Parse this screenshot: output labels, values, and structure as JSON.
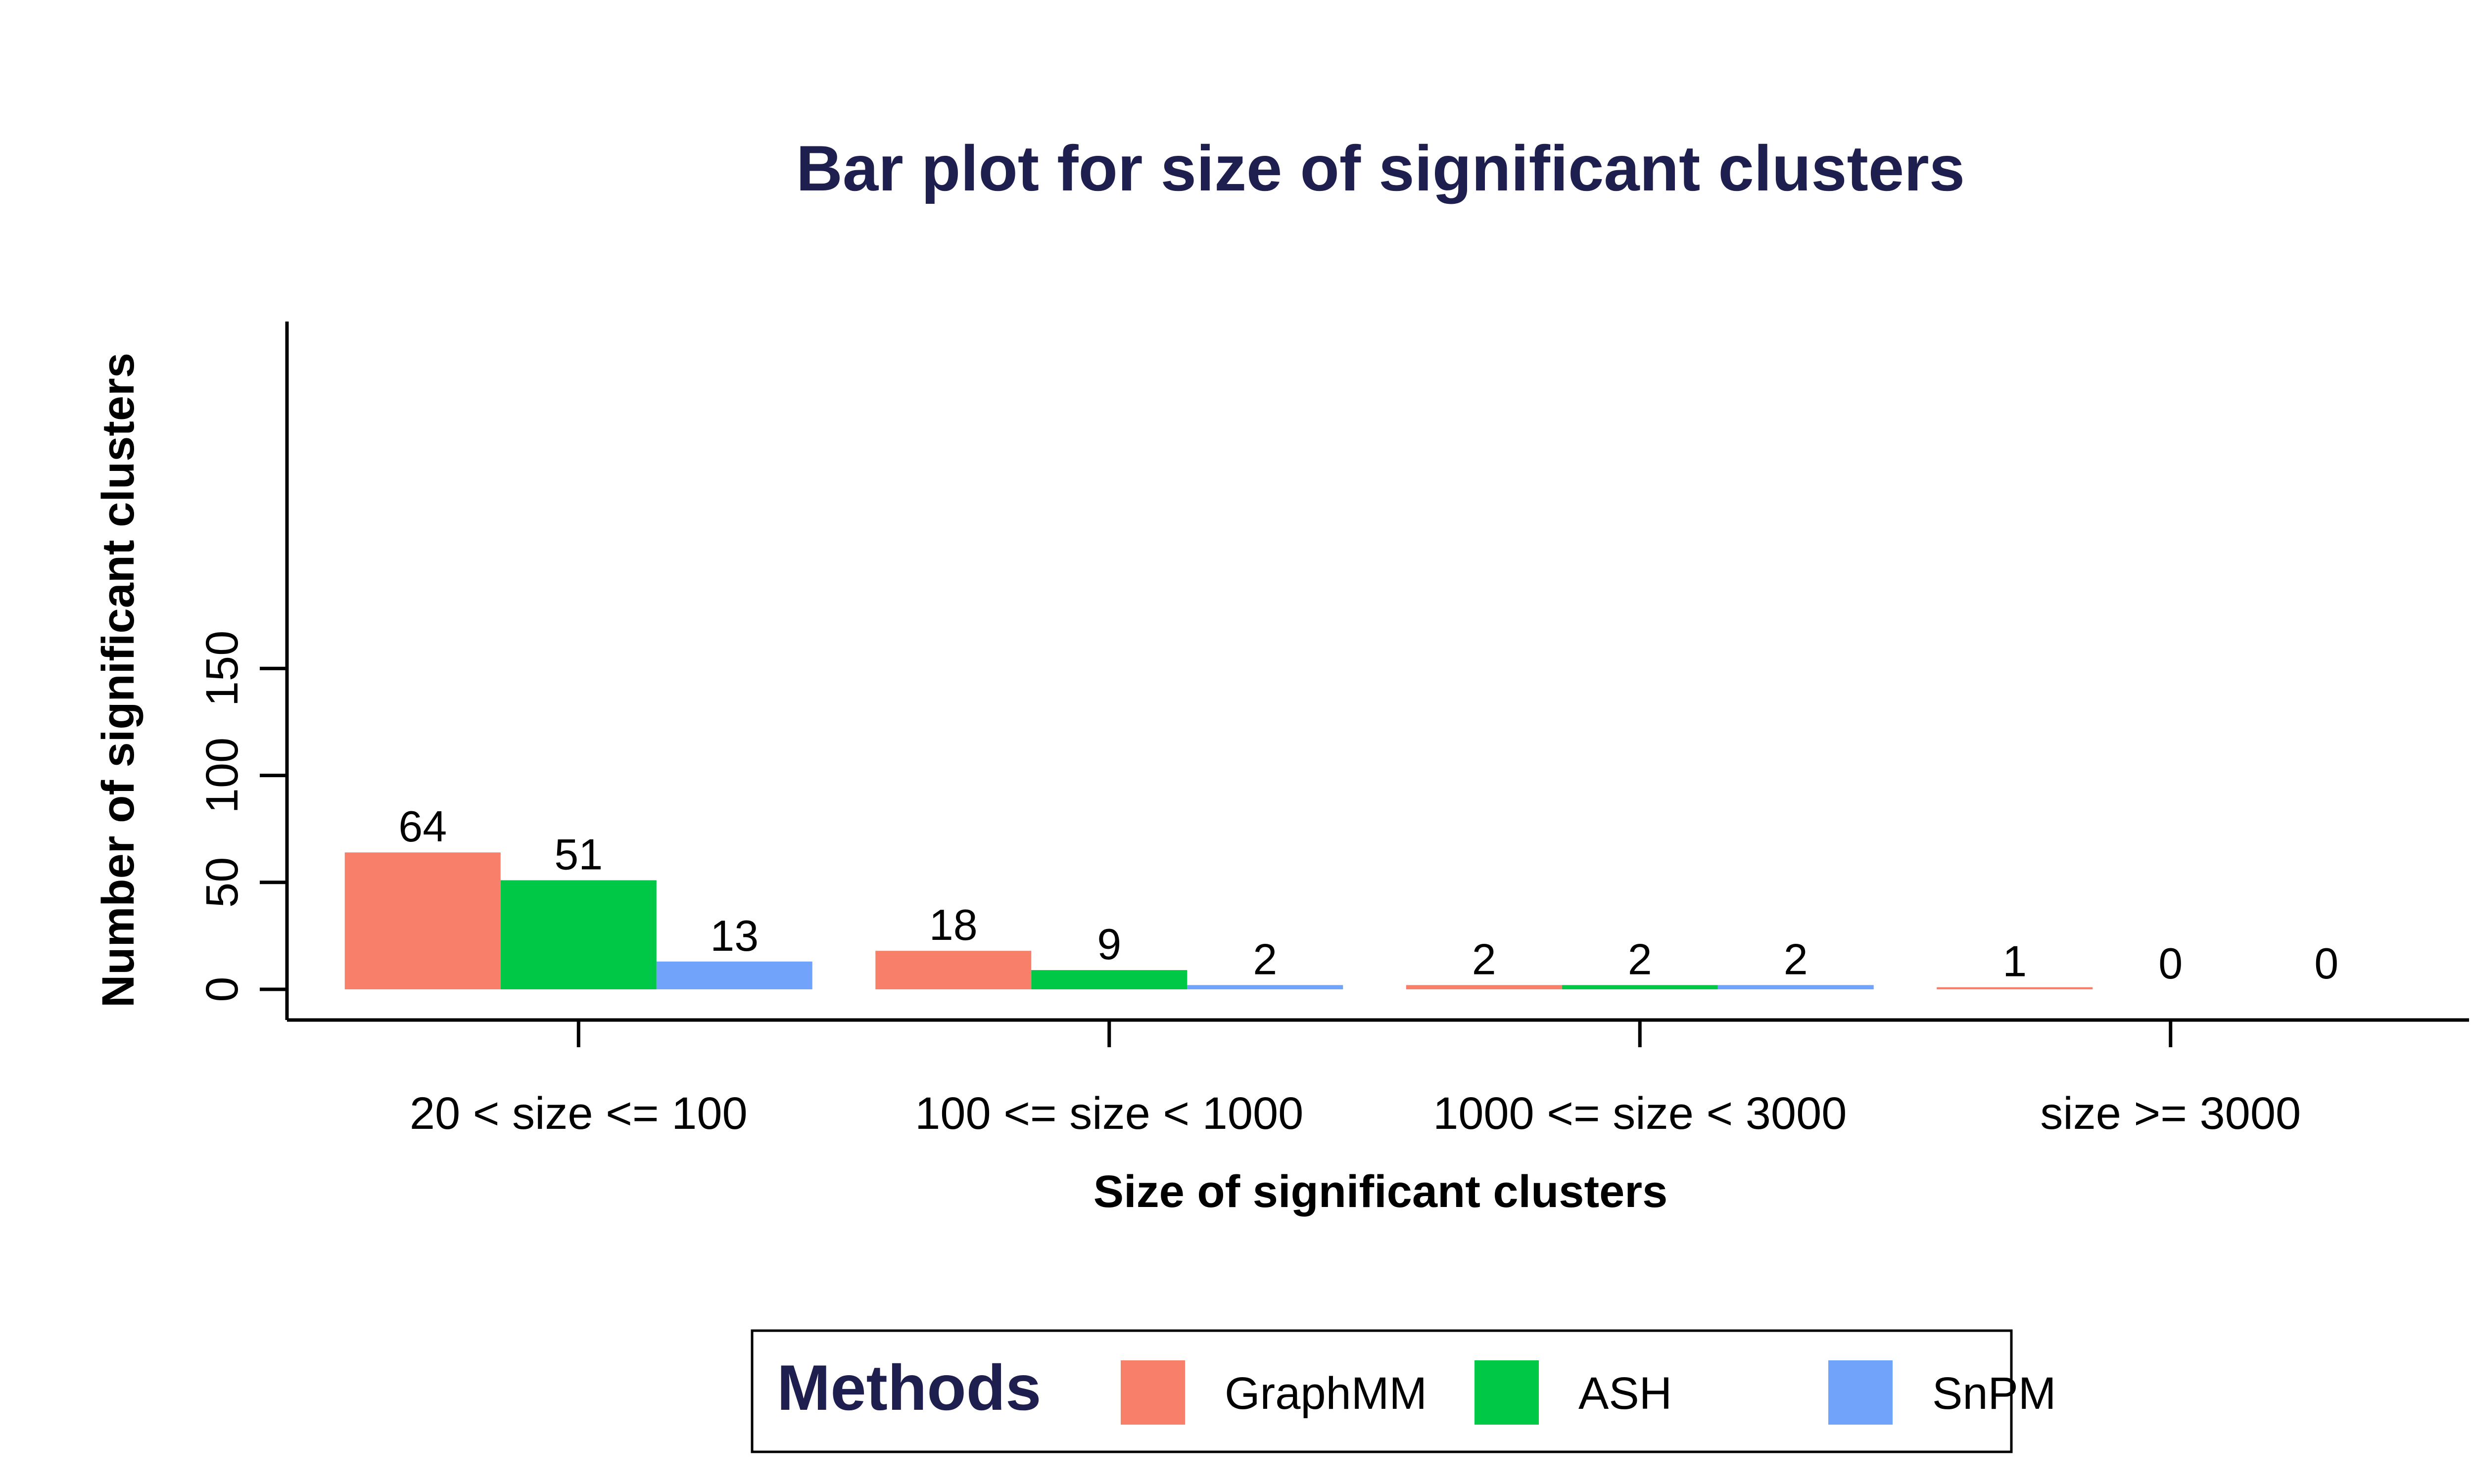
{
  "chart_data": {
    "type": "bar",
    "title": "Bar plot for size of significant clusters",
    "xlabel": "Size of significant clusters",
    "ylabel": "Number of significant clusters",
    "categories": [
      "20 < size <= 100",
      "100 <= size < 1000",
      "1000 <= size < 3000",
      "size >= 3000"
    ],
    "series": [
      {
        "name": "GraphMM",
        "values": [
          64,
          18,
          2,
          1
        ],
        "color": "#f8806b"
      },
      {
        "name": "ASH",
        "values": [
          51,
          9,
          2,
          0
        ],
        "color": "#00c847"
      },
      {
        "name": "SnPM",
        "values": [
          13,
          2,
          2,
          0
        ],
        "color": "#72a3fb"
      }
    ],
    "ylim": [
      0,
      150
    ],
    "yticks": [
      0,
      50,
      100,
      150
    ],
    "grid": false,
    "legend": {
      "title": "Methods",
      "placement": "bottom"
    }
  }
}
